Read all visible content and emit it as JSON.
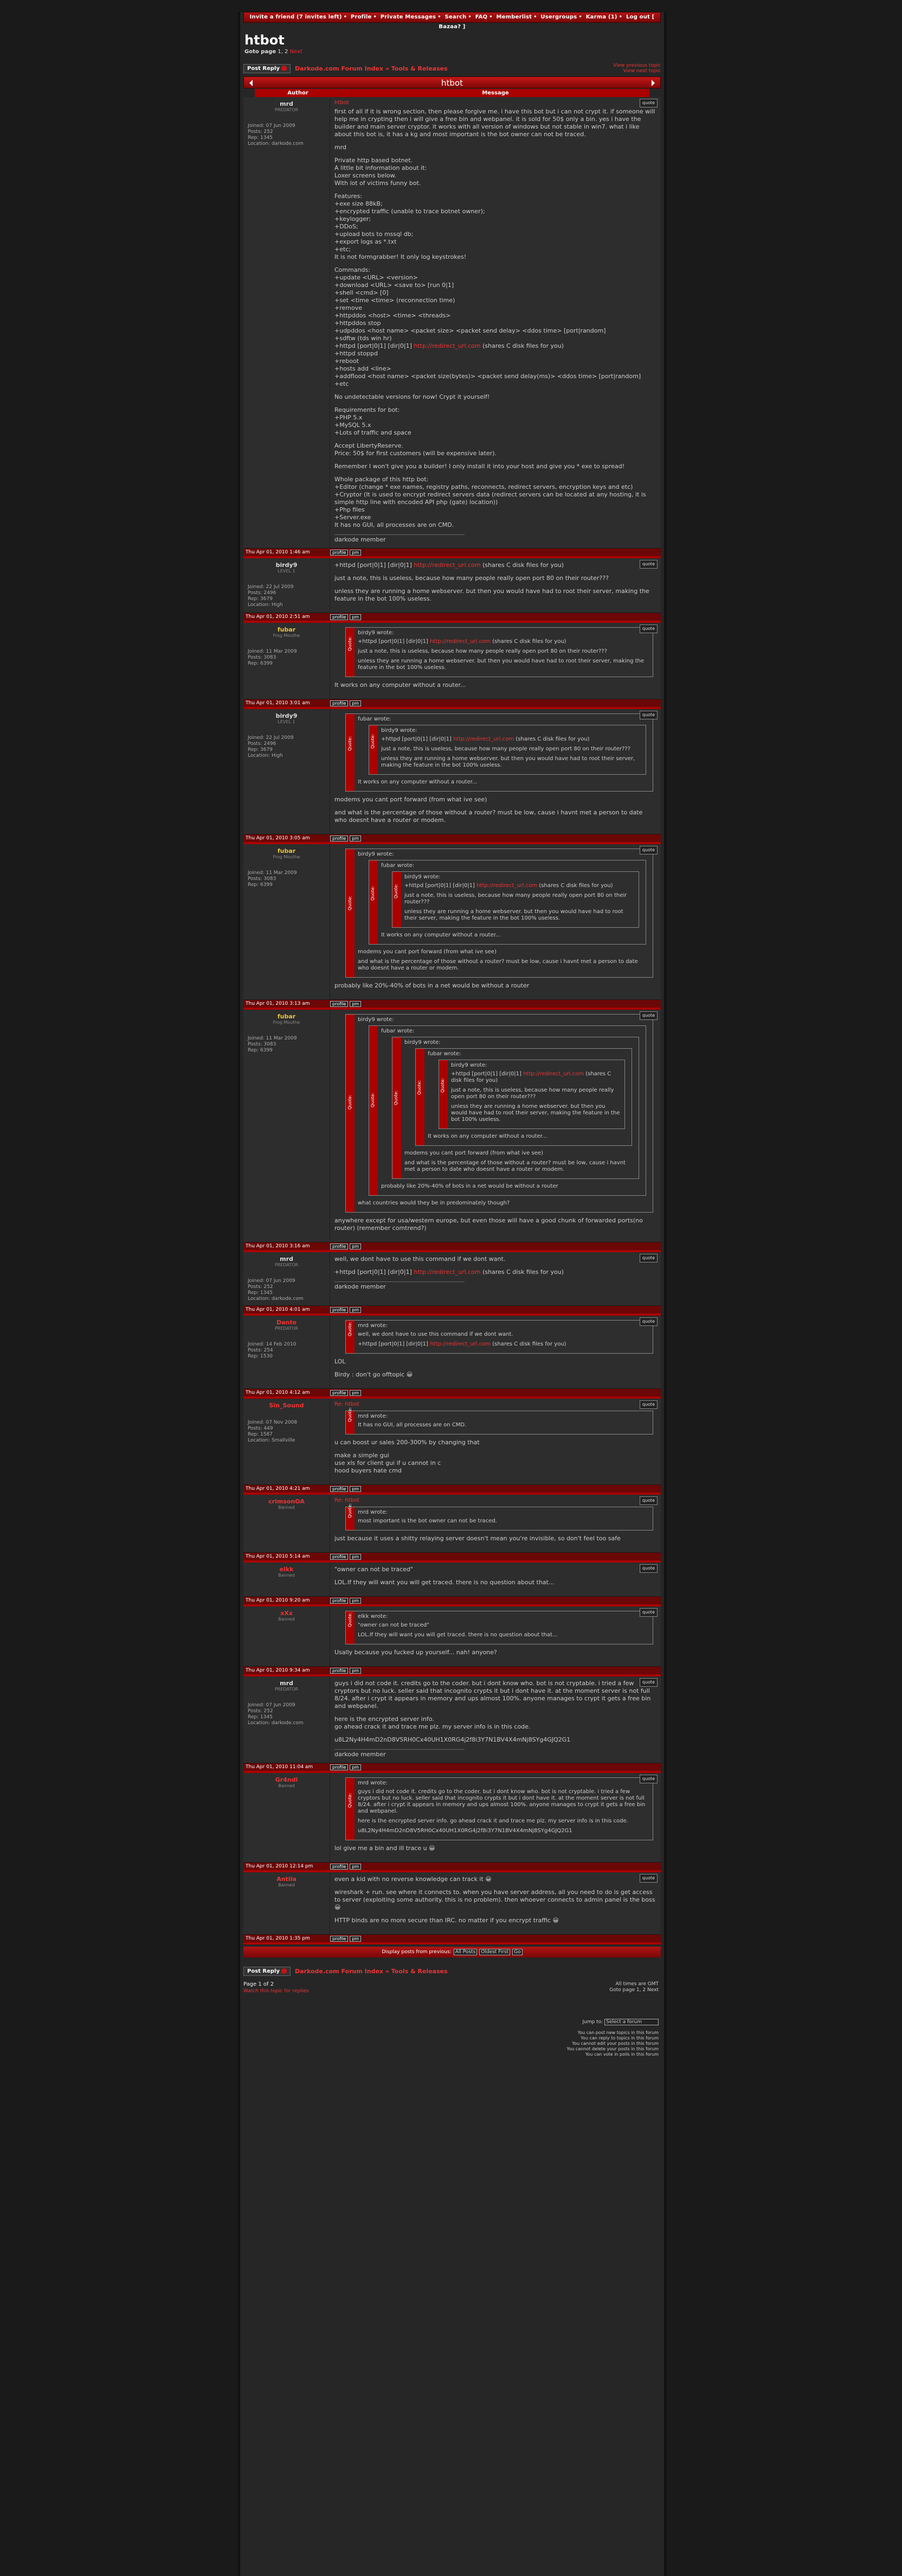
{
  "nav": {
    "items": [
      "Invite a friend (7 invites left)",
      "Profile",
      "Private Messages",
      "Search",
      "FAQ",
      "Memberlist",
      "Usergroups",
      "Karma (1)",
      "Log out [ Bazaa? ]"
    ]
  },
  "topic": {
    "title": "htbot",
    "goto_label": "Goto page",
    "goto_pages": "1, 2",
    "goto_next": "Next"
  },
  "toolbar": {
    "post_reply": "Post Reply",
    "crumb_site": "Darkode.com Forum Index",
    "crumb_sep": "»",
    "crumb_forum": "Tools & Releases",
    "view_prev": "View previous topic",
    "view_next": "View next topic"
  },
  "table": {
    "title": "htbot",
    "col_author": "Author",
    "col_message": "Message"
  },
  "posts": [
    {
      "author": "mrd",
      "rank": "PREDATOR",
      "info": "Joined: 07 Jun 2009\nPosts: 252\nRep: 1345\nLocation: darkode.com",
      "date": "Thu Apr 01, 2010 1:46 am",
      "title": "htbot",
      "body": [
        "first of all if it is wrong section, then please forgive me. i have this bot but i can not crypt it. if someone will help me in crypting then i will give a free bin and webpanel. it is sold for 50$ only a bin. yes i have the builder and main server cryptor. it works with all version of windows but not stable in win7. what i like about this bot is, it has a kg and most important is the bot owner can not be traced.",
        "mrd",
        "Private http based botnet.\nA little bit information about it:\nLoxer screens below.\nWith lot of victims funny bot.",
        "Features:\n+exe size 88kB;\n+encrypted traffic (unable to trace botnet owner);\n+keylogger;\n+DDoS;\n+upload bots to mssql db;\n+export logs as *.txt\n+etc;\nIt is not formgrabber! It only log keystrokes!",
        "Commands:\n+update <URL> <version>\n+download <URL> <save to> [run 0|1]\n+shell <cmd> [0]\n+set <time <time> (reconnection time)\n+remove\n+httpddos <host> <time> <threads>\n+httpddos stop\n+udpddos <host name> <packet size> <packet send delay> <ddos time> [port|random]\n+sdftw (tds win hr)\n+httpd [port|0|1] [dir|0|1] http://redirect_url.com (shares C disk files for you)\n+httpd stoppd\n+reboot\n+hosts add <line>\n+addflood <host name> <packet size(bytes)> <packet send delay(ms)> <ddos time> [port|random]\n+etc",
        "No undetectable versions for now! Crypt it yourself!",
        "Requirements for bot:\n+PHP 5.x\n+MySQL 5.x\n+Lots of traffic and space",
        "Accept LibertyReserve.\nPrice: 50$ for first customers (will be expensive later).",
        "Remember I won't give you a builder! I only install it into your host and give you * exe to spread!",
        "Whole package of this http bot:\n+Editor (change * exe names, registry paths, reconnects, redirect servers, encryption keys and etc)\n+Cryptor (It is used to encrypt redirect servers data (redirect servers can be located at any hosting, it is simple http line with encoded API php (gate) location))\n+Php files\n+Server.exe\nIt has no GUI, all processes are on CMD."
      ],
      "sig": "darkode member"
    },
    {
      "author": "birdy9",
      "rank": "LEVEL 1",
      "info": "Joined: 22 Jul 2009\nPosts: 2496\nRep: 3679\nLocation: High",
      "date": "Thu Apr 01, 2010 2:51 am",
      "title": "",
      "body": [
        "+httpd [port|0|1] [dir|0|1] http://redirect_url.com (shares C disk files for you)",
        "just a note, this is useless, because how many people really open port 80 on their router???",
        "unless they are running a home webserver. but then you would have had to root their server, making the feature in the bot 100% useless."
      ],
      "sig": ""
    },
    {
      "author": "fubar",
      "rank": "Frog Mouthe",
      "info": "Joined: 11 Mar 2009\nPosts: 3083\nRep: 6399",
      "date": "Thu Apr 01, 2010 3:01 am",
      "title": "",
      "body": [
        "It works on any computer without a router..."
      ],
      "sig": ""
    },
    {
      "author": "birdy9",
      "rank": "LEVEL 1",
      "info": "Joined: 22 Jul 2009\nPosts: 2496\nRep: 3679\nLocation: High",
      "date": "Thu Apr 01, 2010 3:05 am",
      "title": "",
      "body": [
        "modems you cant port forward (from what ive see)",
        "and what is the percentage of those without a router? must be low, cause i havnt met a person to date who doesnt have a router or modem."
      ],
      "sig": ""
    },
    {
      "author": "fubar",
      "rank": "Frog Mouthe",
      "info": "Joined: 11 Mar 2009\nPosts: 3083\nRep: 6399",
      "date": "Thu Apr 01, 2010 3:13 am",
      "title": "",
      "body": [
        "probably like 20%-40% of bots in a net would be without a router"
      ],
      "sig": ""
    },
    {
      "author": "fubar",
      "rank": "Frog Mouthe",
      "info": "Joined: 11 Mar 2009\nPosts: 3083\nRep: 6399",
      "date": "Thu Apr 01, 2010 3:16 am",
      "title": "",
      "body": [
        "anywhere except for usa/western europe, but even those will have a good chunk of forwarded ports(no router) (remember comtrend?)"
      ],
      "sig": ""
    },
    {
      "author": "mrd",
      "rank": "PREDATOR",
      "info": "Joined: 07 Jun 2009\nPosts: 252\nRep: 1345\nLocation: darkode.com",
      "date": "Thu Apr 01, 2010 4:01 am",
      "title": "",
      "body": [
        "well, we dont have to use this command if we dont want.",
        "+httpd [port|0|1] [dir|0|1] http://redirect_url.com (shares C disk files for you)"
      ],
      "sig": "darkode member"
    },
    {
      "author": "Dante",
      "rank": "PREDATOR",
      "info": "Joined: 14 Feb 2010\nPosts: 254\nRep: 1530",
      "date": "Thu Apr 01, 2010 4:12 am",
      "title": "",
      "body": [
        "LOL",
        "Birdy : don't go offtopic 😀"
      ],
      "sig": ""
    },
    {
      "author": "Sin_Sound",
      "rank": "",
      "info": "Joined: 07 Nov 2008\nPosts: 449\nRep: 1587\nLocation: Smallville",
      "date": "Thu Apr 01, 2010 4:21 am",
      "title": "Re: htbot",
      "body": [
        "u can boost ur sales 200-300% by changing that",
        "make a simple gui\nuse xls for client gui if u cannot in c\nhood buyers hate cmd"
      ],
      "sig": ""
    },
    {
      "author": "crimsonOA",
      "rank": "Banned",
      "info": "",
      "date": "Thu Apr 01, 2010 5:14 am",
      "title": "Re: htbot",
      "body": [
        "just because it uses a shitty relaying server doesn't mean you're invisible, so don't feel too safe"
      ],
      "sig": ""
    },
    {
      "author": "elkk",
      "rank": "Banned",
      "info": "",
      "date": "Thu Apr 01, 2010 9:20 am",
      "title": "",
      "body": [
        "\"owner can not be traced\"",
        "LOL.If they will want you will get traced. there is no question about that..."
      ],
      "sig": ""
    },
    {
      "author": "xXx",
      "rank": "Banned",
      "info": "",
      "date": "Thu Apr 01, 2010 9:34 am",
      "title": "",
      "body": [
        "Usally because you fucked up yourself... nah! anyone?"
      ],
      "sig": ""
    },
    {
      "author": "mrd",
      "rank": "PREDATOR",
      "info": "Joined: 07 Jun 2009\nPosts: 252\nRep: 1345\nLocation: darkode.com",
      "date": "Thu Apr 01, 2010 11:04 am",
      "title": "",
      "body": [
        "guys i did not code it. credits go to the coder. but i dont know who. bot is not cryptable. i tried a few cryptors but no luck. seller said that incognito crypts it but i dont have it. at the moment server is not full 8/24. after i crypt it appears in memory and ups almost 100%. anyone manages to crypt it gets a free bin and webpanel.",
        "here is the encrypted server info.\ngo ahead crack it and trace me plz. my server info is in this code.",
        "u8L2Ny4H4mD2nD8V5RH0Cx40UH1X0RG4j2f8i3Y7N1BV4X4mNj8SYg4GJQ2G1"
      ],
      "sig": "darkode member"
    },
    {
      "author": "Gr4ndl",
      "rank": "Banned",
      "info": "",
      "date": "Thu Apr 01, 2010 12:14 pm",
      "title": "",
      "body": [
        "lol give me a bin and ill trace u 😀"
      ],
      "sig": ""
    },
    {
      "author": "Antila",
      "rank": "Banned",
      "info": "",
      "date": "Thu Apr 01, 2010 1:35 pm",
      "title": "",
      "body": [
        "even a kid with no reverse knowledge can track it 😀",
        "wireshark + run. see where it connects to. when you have server address, all you need to do is get access to server (exploiting some authority. this is no problem). then whoever connects to admin panel is the boss 😀",
        "HTTP binds are no more secure than IRC. no matter if you encrypt traffic 😀"
      ],
      "sig": ""
    }
  ],
  "quotes": {
    "wrote_birdy": "birdy9 wrote:",
    "wrote_fubar": "fubar wrote:",
    "wrote_mrd": "mrd wrote:",
    "wrote_elkk": "elkk wrote:",
    "quote_tag": "Quote:",
    "q_httpd": "+httpd [port|0|1] [dir|0|1] http://redirect_url.com (shares C disk files for you)",
    "q_useless": "just a note, this is useless, because how many people really open port 80 on their router???",
    "q_unless": "unless they are running a home webserver. but then you would have had to root their server, making the feature in the bot 100% useless.",
    "q_works": "It works on any computer without a router...",
    "q_modems": "modems you cant port forward (from what ive see)",
    "q_percent": "and what is the percentage of those without a router? must be low, cause i havnt met a person to date who doesnt have a router or modem.",
    "q_probably": "probably like 20%-40% of bots in a net would be without a router",
    "q_countries": "what countries would they be in predominately though?",
    "q_wedont": "well, we dont have to use this command if we dont want.",
    "q_nogui": "It has no GUI, all processes are on CMD.",
    "q_traced": "most important is the bot owner can not be traced.",
    "q_owner": "\"owner can not be traced\"",
    "q_lol": "LOL.If they will want you will get traced. there is no question about that...",
    "q_guys": "guys i did not code it. credits go to the coder. but i dont know who. bot is not cryptable. i tried a few cryptors but no luck. seller said that incognito crypts it but i dont have it. at the moment server is not full 8/24. after i crypt it appears in memory and ups almost 100%. anyone manages to crypt it gets a free bin and webpanel.",
    "q_here": "here is the encrypted server info. go ahead crack it and trace me plz. my server info is in this code.",
    "q_code": "u8L2Ny4H4mD2nD8V5RH0Cx40UH1X0RG4j2f8i3Y7N1BV4X4mNj8SYg4GJQ2G1"
  },
  "footer_bar": {
    "label": "Display posts from previous:",
    "sel1": "All Posts",
    "sel2": "Oldest First",
    "go": "Go"
  },
  "footer": {
    "page": "Page 1 of 2",
    "watch": "Watch this topic for replies",
    "timezone": "All times are GMT",
    "goto": "Goto page 1, 2  Next",
    "jump_label": "Jump to:",
    "jump_sel": "Select a forum",
    "perm": "You can post new topics in this forum\nYou can reply to topics in this forum\nYou cannot edit your posts in this forum\nYou cannot delete your posts in this forum\nYou can vote in polls in this forum"
  },
  "buttons": {
    "quote": "quote",
    "profile": "profile",
    "pm": "pm"
  },
  "colors": {
    "accent": "#b01414",
    "text": "#cccccc",
    "bg": "#262626"
  }
}
